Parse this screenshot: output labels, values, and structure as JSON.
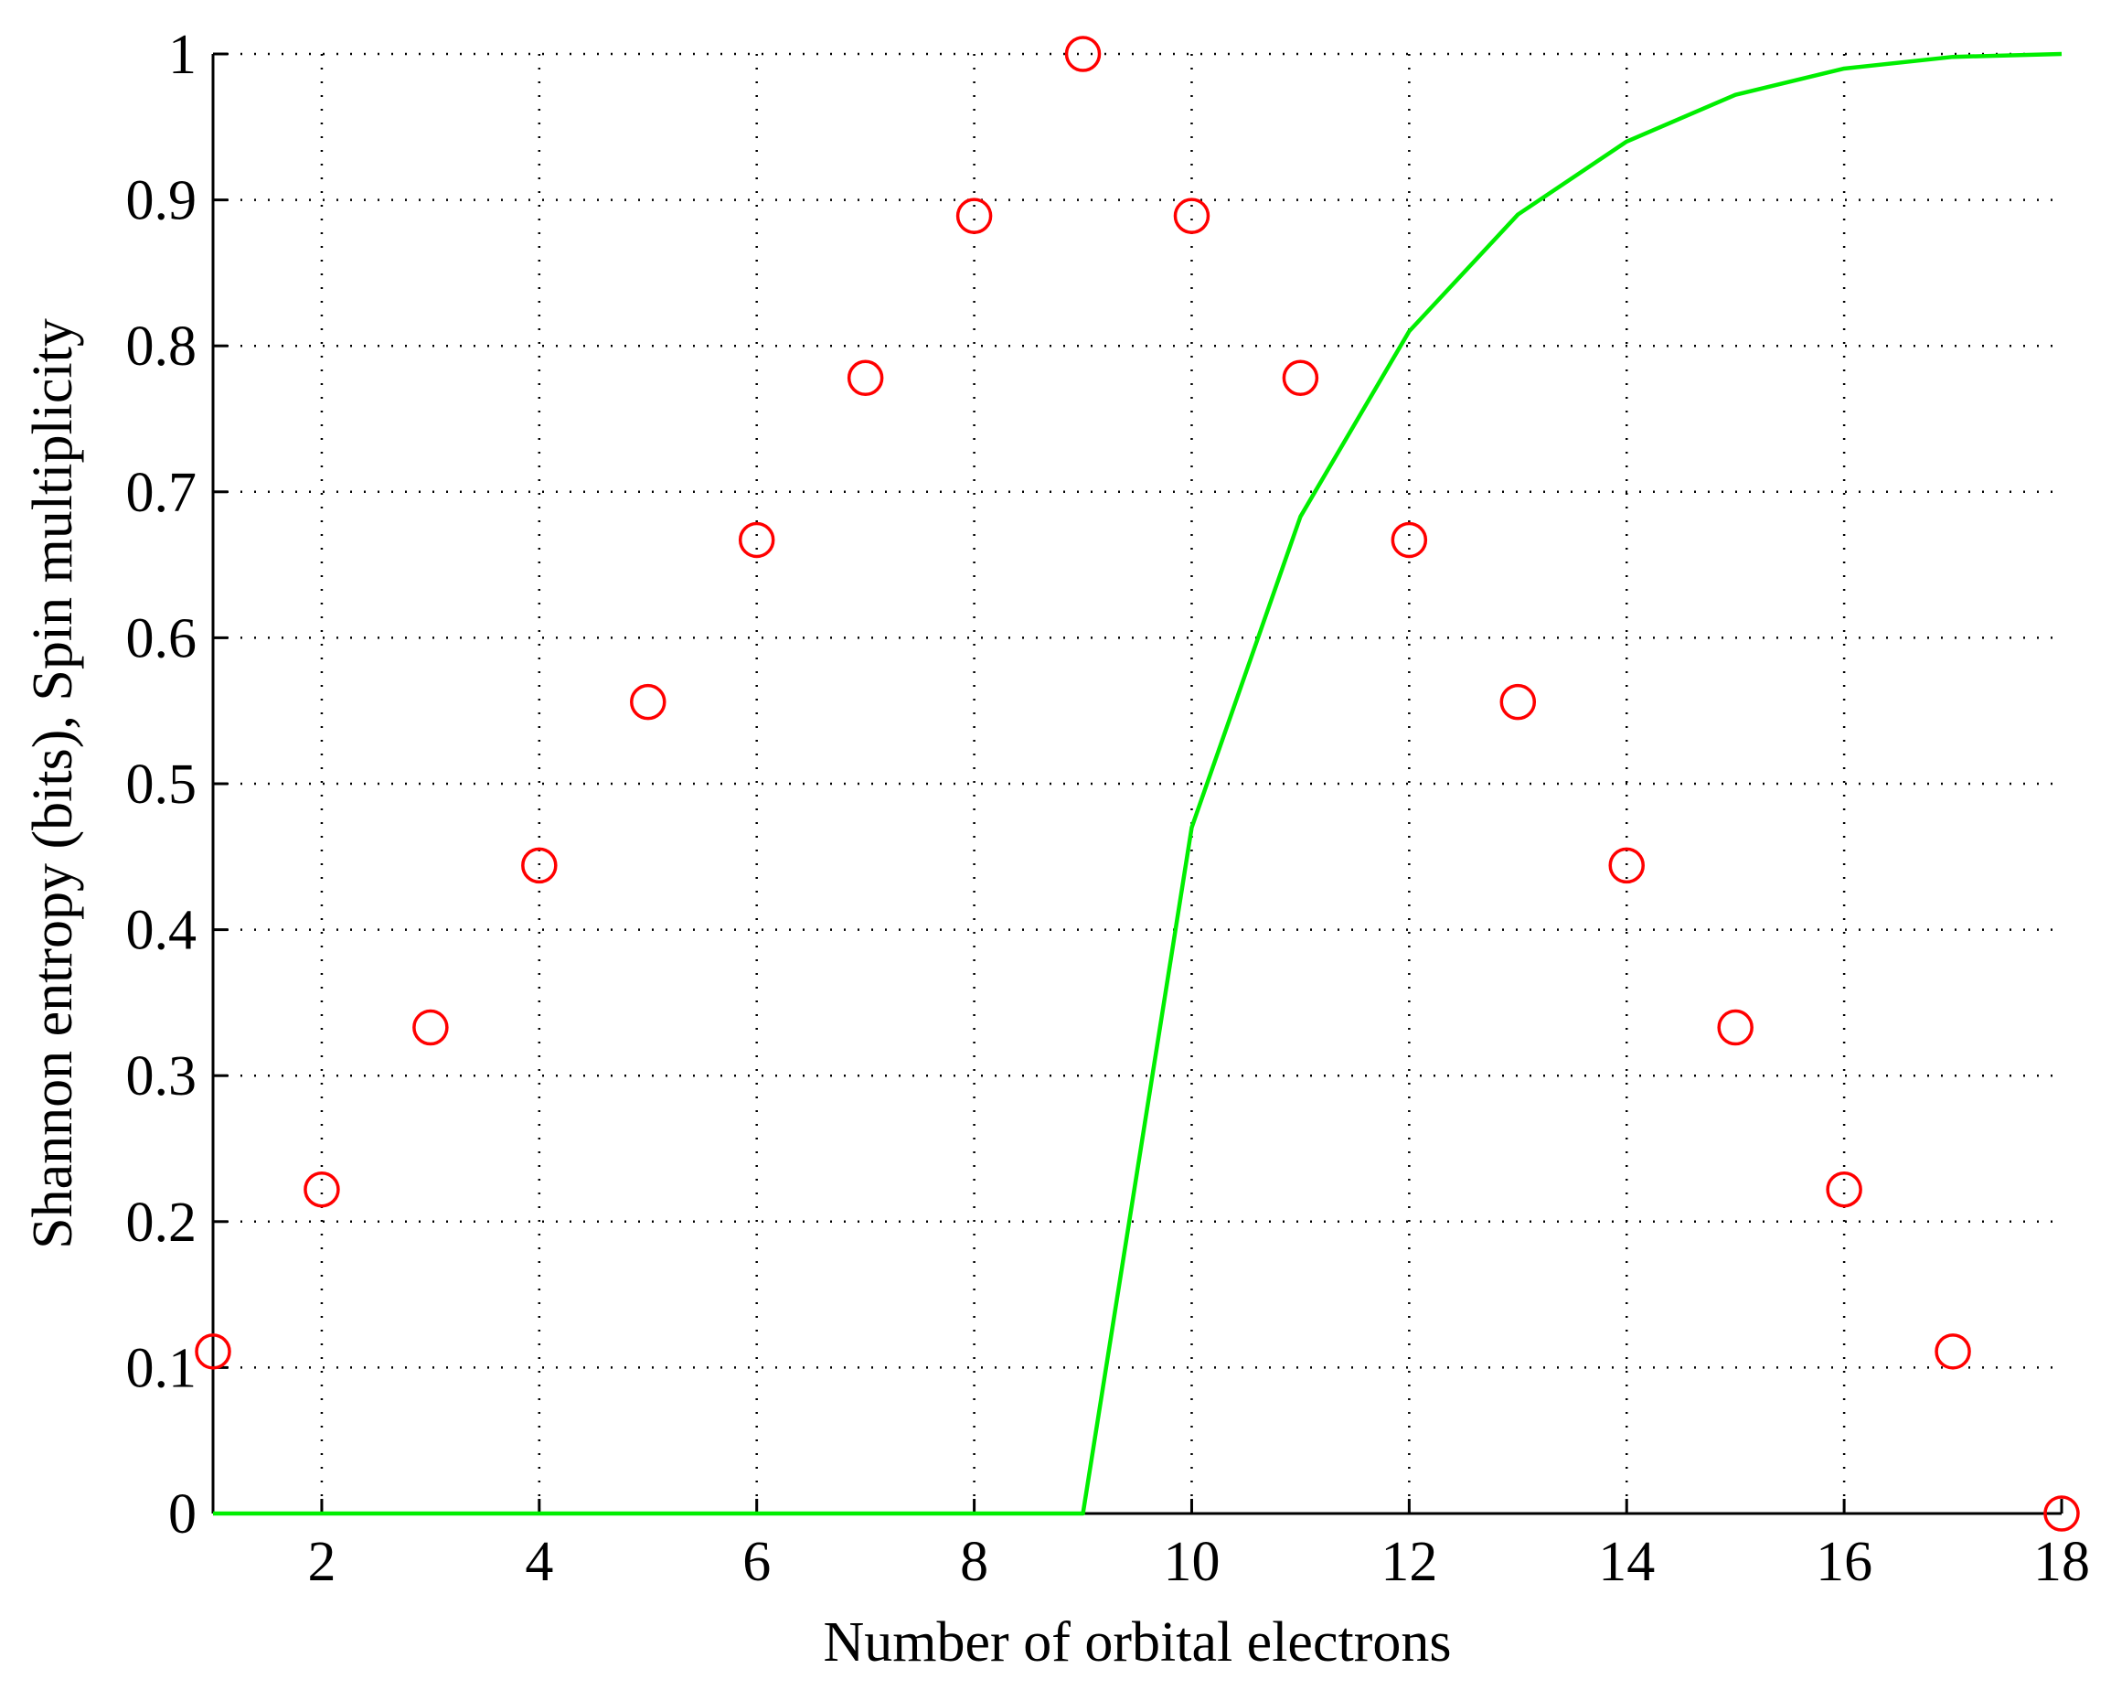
{
  "chart_data": {
    "type": "scatter",
    "xlabel": "Number of orbital electrons",
    "ylabel": "Shannon entropy (bits), Spin multiplicity",
    "xlim": [
      1,
      18
    ],
    "ylim": [
      0,
      1
    ],
    "x_ticks": [
      2,
      4,
      6,
      8,
      10,
      12,
      14,
      16,
      18
    ],
    "x_tick_labels": [
      "2",
      "4",
      "6",
      "8",
      "10",
      "12",
      "14",
      "16",
      "18"
    ],
    "y_ticks": [
      0,
      0.1,
      0.2,
      0.3,
      0.4,
      0.5,
      0.6,
      0.7,
      0.8,
      0.9,
      1
    ],
    "y_tick_labels": [
      "0",
      "0.1",
      "0.2",
      "0.3",
      "0.4",
      "0.5",
      "0.6",
      "0.7",
      "0.8",
      "0.9",
      "1"
    ],
    "grid": true,
    "legend": "none",
    "series": [
      {
        "marker": "circle",
        "line": "none",
        "color": "#ff0000",
        "x": [
          1,
          2,
          3,
          4,
          5,
          6,
          7,
          8,
          9,
          10,
          11,
          12,
          13,
          14,
          15,
          16,
          17,
          18
        ],
        "y": [
          0.111,
          0.222,
          0.333,
          0.444,
          0.556,
          0.667,
          0.778,
          0.889,
          1.0,
          0.889,
          0.778,
          0.667,
          0.556,
          0.444,
          0.333,
          0.222,
          0.111,
          0.0
        ]
      },
      {
        "marker": "none",
        "line": "solid",
        "color": "#00ee00",
        "x": [
          1,
          2,
          3,
          4,
          5,
          6,
          7,
          8,
          9,
          10,
          11,
          12,
          13,
          14,
          15,
          16,
          17,
          18
        ],
        "y": [
          0,
          0,
          0,
          0,
          0,
          0,
          0,
          0,
          0,
          0.47,
          0.683,
          0.81,
          0.89,
          0.94,
          0.972,
          0.99,
          0.998,
          1.0
        ]
      }
    ]
  }
}
